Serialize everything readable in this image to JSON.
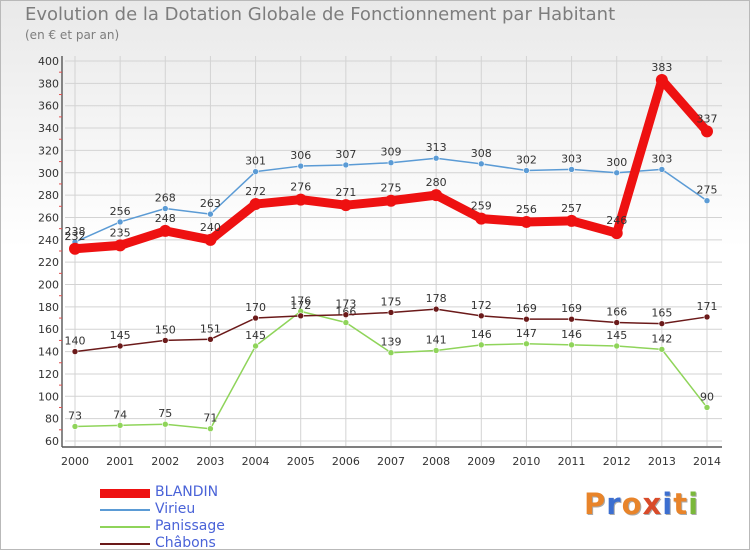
{
  "title": "Evolution de la Dotation Globale de Fonctionnement par Habitant",
  "subtitle": "(en € et par an)",
  "logo": {
    "text": "Proxiti",
    "letter_colors": [
      "#e8842a",
      "#3c6fd0",
      "#e8842a",
      "#d94b2a",
      "#3c6fd0",
      "#e8842a",
      "#7ab83a"
    ]
  },
  "chart_data": {
    "type": "line",
    "title": "Evolution de la Dotation Globale de Fonctionnement par Habitant",
    "subtitle": "(en € et par an)",
    "xlabel": "",
    "ylabel": "",
    "x": [
      "2000",
      "2001",
      "2002",
      "2003",
      "2004",
      "2005",
      "2006",
      "2007",
      "2008",
      "2009",
      "2010",
      "2011",
      "2012",
      "2013",
      "2014"
    ],
    "ylim": [
      60,
      400
    ],
    "yticks": [
      60,
      80,
      100,
      120,
      140,
      160,
      180,
      200,
      220,
      240,
      260,
      280,
      300,
      320,
      340,
      360,
      380,
      400
    ],
    "grid": true,
    "legend_position": "bottom-left",
    "series": [
      {
        "name": "BLANDIN",
        "color": "#ee1111",
        "emphasis": true,
        "values": [
          232,
          235,
          248,
          240,
          272,
          276,
          271,
          275,
          280,
          259,
          256,
          257,
          246,
          383,
          337
        ]
      },
      {
        "name": "Virieu",
        "color": "#5b9bd5",
        "emphasis": false,
        "values": [
          238,
          256,
          268,
          263,
          301,
          306,
          307,
          309,
          313,
          308,
          302,
          303,
          300,
          303,
          275
        ]
      },
      {
        "name": "Panissage",
        "color": "#8fd45a",
        "emphasis": false,
        "values": [
          73,
          74,
          75,
          71,
          145,
          176,
          166,
          139,
          141,
          146,
          147,
          146,
          145,
          142,
          90
        ]
      },
      {
        "name": "Châbons",
        "color": "#6b1a1a",
        "emphasis": false,
        "values": [
          140,
          145,
          150,
          151,
          170,
          172,
          173,
          175,
          178,
          172,
          169,
          169,
          166,
          165,
          171
        ]
      }
    ]
  }
}
